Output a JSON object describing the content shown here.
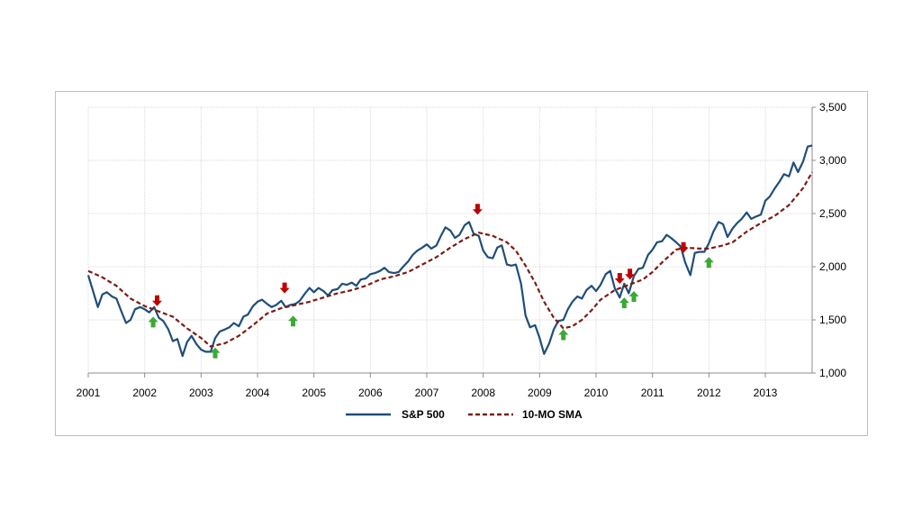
{
  "chart_data": {
    "type": "line",
    "x_ticks": [
      "2001",
      "2002",
      "2003",
      "2004",
      "2005",
      "2006",
      "2007",
      "2008",
      "2009",
      "2010",
      "2011",
      "2012",
      "2013"
    ],
    "y_ticks": [
      "1,000",
      "1,500",
      "2,000",
      "2,500",
      "3,000",
      "3,500"
    ],
    "ylim": [
      1000,
      3500
    ],
    "xlim": [
      2001,
      2013.85
    ],
    "grid": true,
    "y_axis_side": "right",
    "legend_position": "bottom",
    "colors": {
      "sp500": "#1f4e79",
      "sma": "#7b1c14",
      "sell": "#c00000",
      "buy": "#3aaa35"
    },
    "series": [
      {
        "name": "S&P 500",
        "style": "solid",
        "points": [
          [
            2001.0,
            1920
          ],
          [
            2001.08,
            1780
          ],
          [
            2001.17,
            1620
          ],
          [
            2001.25,
            1740
          ],
          [
            2001.33,
            1760
          ],
          [
            2001.42,
            1720
          ],
          [
            2001.5,
            1700
          ],
          [
            2001.58,
            1590
          ],
          [
            2001.67,
            1470
          ],
          [
            2001.75,
            1500
          ],
          [
            2001.83,
            1600
          ],
          [
            2001.92,
            1620
          ],
          [
            2002.0,
            1600
          ],
          [
            2002.08,
            1570
          ],
          [
            2002.17,
            1620
          ],
          [
            2002.25,
            1520
          ],
          [
            2002.33,
            1490
          ],
          [
            2002.42,
            1410
          ],
          [
            2002.5,
            1300
          ],
          [
            2002.58,
            1320
          ],
          [
            2002.67,
            1160
          ],
          [
            2002.75,
            1290
          ],
          [
            2002.83,
            1350
          ],
          [
            2002.92,
            1270
          ],
          [
            2003.0,
            1220
          ],
          [
            2003.08,
            1200
          ],
          [
            2003.17,
            1200
          ],
          [
            2003.25,
            1330
          ],
          [
            2003.33,
            1390
          ],
          [
            2003.42,
            1410
          ],
          [
            2003.5,
            1430
          ],
          [
            2003.58,
            1470
          ],
          [
            2003.67,
            1440
          ],
          [
            2003.75,
            1530
          ],
          [
            2003.83,
            1550
          ],
          [
            2003.92,
            1630
          ],
          [
            2004.0,
            1670
          ],
          [
            2004.08,
            1690
          ],
          [
            2004.17,
            1650
          ],
          [
            2004.25,
            1620
          ],
          [
            2004.33,
            1640
          ],
          [
            2004.42,
            1680
          ],
          [
            2004.5,
            1620
          ],
          [
            2004.58,
            1640
          ],
          [
            2004.67,
            1650
          ],
          [
            2004.75,
            1680
          ],
          [
            2004.83,
            1740
          ],
          [
            2004.92,
            1800
          ],
          [
            2005.0,
            1760
          ],
          [
            2005.08,
            1800
          ],
          [
            2005.17,
            1770
          ],
          [
            2005.25,
            1730
          ],
          [
            2005.33,
            1780
          ],
          [
            2005.42,
            1790
          ],
          [
            2005.5,
            1840
          ],
          [
            2005.58,
            1830
          ],
          [
            2005.67,
            1850
          ],
          [
            2005.75,
            1820
          ],
          [
            2005.83,
            1880
          ],
          [
            2005.92,
            1890
          ],
          [
            2006.0,
            1930
          ],
          [
            2006.08,
            1940
          ],
          [
            2006.17,
            1960
          ],
          [
            2006.25,
            1990
          ],
          [
            2006.33,
            1950
          ],
          [
            2006.42,
            1940
          ],
          [
            2006.5,
            1950
          ],
          [
            2006.58,
            2000
          ],
          [
            2006.67,
            2050
          ],
          [
            2006.75,
            2110
          ],
          [
            2006.83,
            2150
          ],
          [
            2006.92,
            2180
          ],
          [
            2007.0,
            2210
          ],
          [
            2007.08,
            2170
          ],
          [
            2007.17,
            2200
          ],
          [
            2007.25,
            2290
          ],
          [
            2007.33,
            2370
          ],
          [
            2007.42,
            2340
          ],
          [
            2007.5,
            2270
          ],
          [
            2007.58,
            2300
          ],
          [
            2007.67,
            2390
          ],
          [
            2007.75,
            2420
          ],
          [
            2007.83,
            2310
          ],
          [
            2007.92,
            2290
          ],
          [
            2008.0,
            2150
          ],
          [
            2008.08,
            2090
          ],
          [
            2008.17,
            2080
          ],
          [
            2008.25,
            2180
          ],
          [
            2008.33,
            2200
          ],
          [
            2008.42,
            2020
          ],
          [
            2008.5,
            2010
          ],
          [
            2008.58,
            2020
          ],
          [
            2008.67,
            1840
          ],
          [
            2008.75,
            1540
          ],
          [
            2008.83,
            1430
          ],
          [
            2008.92,
            1450
          ],
          [
            2009.0,
            1330
          ],
          [
            2009.08,
            1180
          ],
          [
            2009.17,
            1280
          ],
          [
            2009.25,
            1410
          ],
          [
            2009.33,
            1490
          ],
          [
            2009.42,
            1500
          ],
          [
            2009.5,
            1600
          ],
          [
            2009.58,
            1670
          ],
          [
            2009.67,
            1720
          ],
          [
            2009.75,
            1700
          ],
          [
            2009.83,
            1780
          ],
          [
            2009.92,
            1820
          ],
          [
            2010.0,
            1770
          ],
          [
            2010.08,
            1830
          ],
          [
            2010.17,
            1930
          ],
          [
            2010.25,
            1960
          ],
          [
            2010.33,
            1800
          ],
          [
            2010.42,
            1710
          ],
          [
            2010.5,
            1840
          ],
          [
            2010.58,
            1750
          ],
          [
            2010.67,
            1910
          ],
          [
            2010.75,
            1980
          ],
          [
            2010.83,
            1990
          ],
          [
            2010.92,
            2110
          ],
          [
            2011.0,
            2160
          ],
          [
            2011.08,
            2230
          ],
          [
            2011.17,
            2240
          ],
          [
            2011.25,
            2300
          ],
          [
            2011.33,
            2270
          ],
          [
            2011.42,
            2230
          ],
          [
            2011.5,
            2190
          ],
          [
            2011.58,
            2040
          ],
          [
            2011.67,
            1920
          ],
          [
            2011.75,
            2130
          ],
          [
            2011.83,
            2140
          ],
          [
            2011.92,
            2140
          ],
          [
            2012.0,
            2220
          ],
          [
            2012.08,
            2330
          ],
          [
            2012.17,
            2420
          ],
          [
            2012.25,
            2400
          ],
          [
            2012.33,
            2280
          ],
          [
            2012.42,
            2360
          ],
          [
            2012.5,
            2410
          ],
          [
            2012.58,
            2450
          ],
          [
            2012.67,
            2510
          ],
          [
            2012.75,
            2450
          ],
          [
            2012.83,
            2470
          ],
          [
            2012.92,
            2490
          ],
          [
            2013.0,
            2620
          ],
          [
            2013.08,
            2660
          ],
          [
            2013.17,
            2740
          ],
          [
            2013.25,
            2800
          ],
          [
            2013.33,
            2870
          ],
          [
            2013.42,
            2850
          ],
          [
            2013.5,
            2980
          ],
          [
            2013.58,
            2890
          ],
          [
            2013.67,
            2990
          ],
          [
            2013.75,
            3130
          ],
          [
            2013.83,
            3140
          ]
        ]
      },
      {
        "name": "10-MO  SMA",
        "style": "dashed",
        "points": [
          [
            2001.0,
            1960
          ],
          [
            2001.25,
            1900
          ],
          [
            2001.5,
            1820
          ],
          [
            2001.75,
            1700
          ],
          [
            2002.0,
            1630
          ],
          [
            2002.25,
            1580
          ],
          [
            2002.5,
            1530
          ],
          [
            2002.75,
            1420
          ],
          [
            2003.0,
            1330
          ],
          [
            2003.17,
            1250
          ],
          [
            2003.42,
            1280
          ],
          [
            2003.67,
            1350
          ],
          [
            2003.92,
            1450
          ],
          [
            2004.17,
            1560
          ],
          [
            2004.42,
            1610
          ],
          [
            2004.67,
            1640
          ],
          [
            2004.92,
            1670
          ],
          [
            2005.17,
            1710
          ],
          [
            2005.42,
            1750
          ],
          [
            2005.67,
            1780
          ],
          [
            2005.92,
            1820
          ],
          [
            2006.17,
            1880
          ],
          [
            2006.42,
            1910
          ],
          [
            2006.67,
            1950
          ],
          [
            2006.92,
            2020
          ],
          [
            2007.17,
            2090
          ],
          [
            2007.42,
            2180
          ],
          [
            2007.67,
            2260
          ],
          [
            2007.92,
            2320
          ],
          [
            2008.17,
            2290
          ],
          [
            2008.42,
            2230
          ],
          [
            2008.58,
            2150
          ],
          [
            2008.75,
            2010
          ],
          [
            2008.92,
            1850
          ],
          [
            2009.08,
            1670
          ],
          [
            2009.25,
            1520
          ],
          [
            2009.42,
            1420
          ],
          [
            2009.58,
            1440
          ],
          [
            2009.75,
            1500
          ],
          [
            2009.92,
            1590
          ],
          [
            2010.08,
            1690
          ],
          [
            2010.33,
            1780
          ],
          [
            2010.58,
            1830
          ],
          [
            2010.83,
            1880
          ],
          [
            2011.0,
            1950
          ],
          [
            2011.17,
            2040
          ],
          [
            2011.42,
            2160
          ],
          [
            2011.58,
            2180
          ],
          [
            2011.83,
            2170
          ],
          [
            2012.0,
            2170
          ],
          [
            2012.25,
            2200
          ],
          [
            2012.42,
            2230
          ],
          [
            2012.67,
            2330
          ],
          [
            2012.92,
            2410
          ],
          [
            2013.17,
            2480
          ],
          [
            2013.42,
            2580
          ],
          [
            2013.67,
            2740
          ],
          [
            2013.83,
            2890
          ]
        ]
      }
    ],
    "signals": [
      {
        "type": "sell",
        "x": 2002.22,
        "y": 1680
      },
      {
        "type": "buy",
        "x": 2002.15,
        "y": 1480
      },
      {
        "type": "buy",
        "x": 2003.25,
        "y": 1190
      },
      {
        "type": "sell",
        "x": 2004.48,
        "y": 1800
      },
      {
        "type": "buy",
        "x": 2004.63,
        "y": 1490
      },
      {
        "type": "sell",
        "x": 2007.9,
        "y": 2540
      },
      {
        "type": "buy",
        "x": 2009.42,
        "y": 1360
      },
      {
        "type": "sell",
        "x": 2010.42,
        "y": 1890
      },
      {
        "type": "sell",
        "x": 2010.6,
        "y": 1930
      },
      {
        "type": "buy",
        "x": 2010.5,
        "y": 1660
      },
      {
        "type": "buy",
        "x": 2010.67,
        "y": 1720
      },
      {
        "type": "sell",
        "x": 2011.55,
        "y": 2180
      },
      {
        "type": "buy",
        "x": 2012.0,
        "y": 2040
      }
    ]
  }
}
